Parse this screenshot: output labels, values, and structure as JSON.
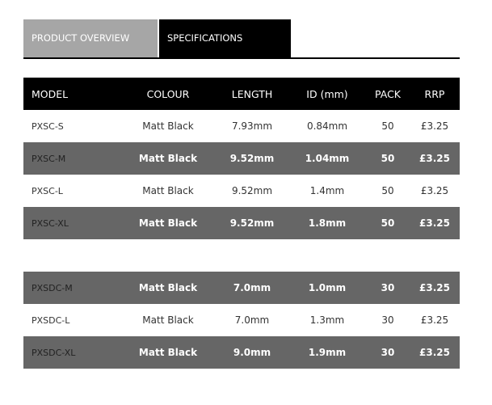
{
  "tabs": [
    {
      "label": "PRODUCT OVERVIEW"
    },
    {
      "label": "SPECIFICATIONS"
    }
  ],
  "headers": [
    "MODEL",
    "COLOUR",
    "LENGTH",
    "ID (mm)",
    "PACK",
    "RRP"
  ],
  "group1": [
    [
      "PXSC-S",
      "Matt Black",
      "7.93mm",
      "0.84mm",
      "50",
      "£3.25"
    ],
    [
      "PXSC-M",
      "Matt Black",
      "9.52mm",
      "1.04mm",
      "50",
      "£3.25"
    ],
    [
      "PXSC-L",
      "Matt Black",
      "9.52mm",
      "1.4mm",
      "50",
      "£3.25"
    ],
    [
      "PXSC-XL",
      "Matt Black",
      "9.52mm",
      "1.8mm",
      "50",
      "£3.25"
    ]
  ],
  "group2": [
    [
      "PXSDC-M",
      "Matt Black",
      "7.0mm",
      "1.0mm",
      "30",
      "£3.25"
    ],
    [
      "PXSDC-L",
      "Matt Black",
      "7.0mm",
      "1.3mm",
      "30",
      "£3.25"
    ],
    [
      "PXSDC-XL",
      "Matt Black",
      "9.0mm",
      "1.9mm",
      "30",
      "£3.25"
    ]
  ],
  "colors": {
    "header": "#000000",
    "alt_row": "#666666",
    "inactive_tab": "#a6a6a6"
  }
}
